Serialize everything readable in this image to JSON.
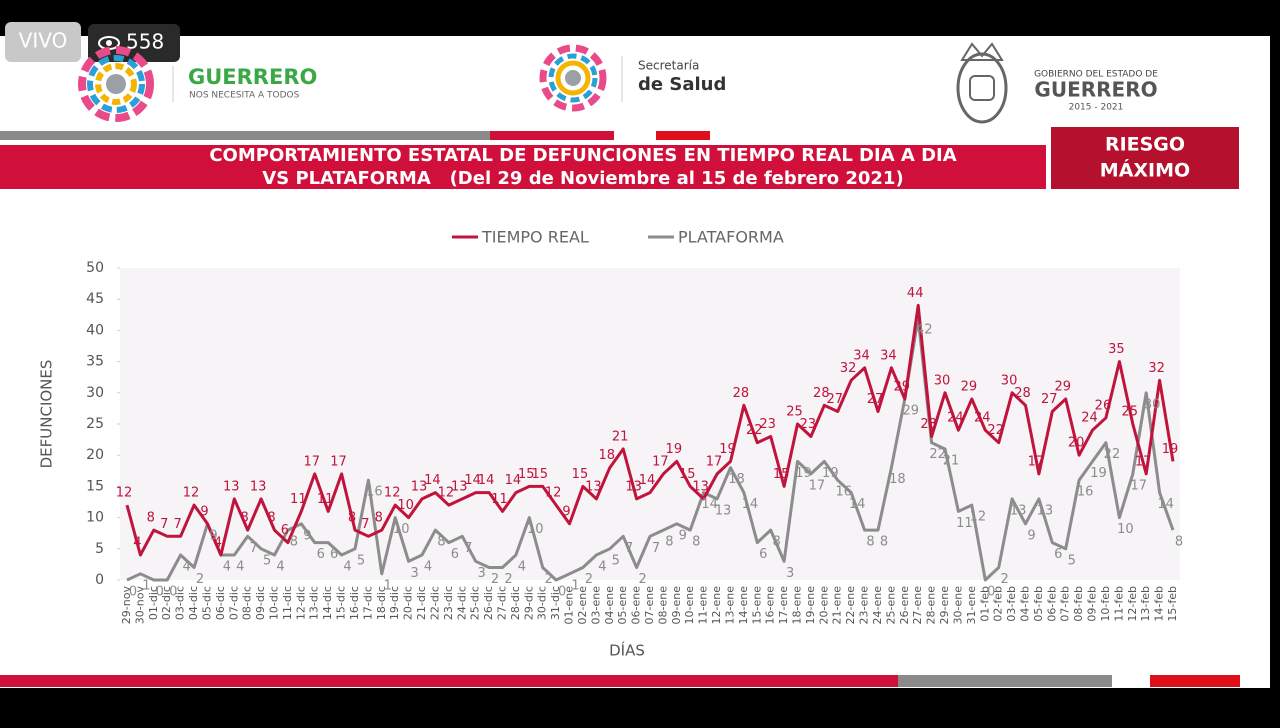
{
  "stream": {
    "live": "VIVO",
    "viewers": "558"
  },
  "header": {
    "brand": "GUERRERO",
    "slogan": "NOS NECESITA A TODOS",
    "secretaria": "Secretaría",
    "salud": "de Salud",
    "gob": "GOBIERNO DEL ESTADO DE",
    "gob_name": "GUERRERO",
    "period": "2015 - 2021",
    "risk": [
      "RIESGO",
      "MÁXIMO"
    ]
  },
  "chart_data": {
    "type": "line",
    "title": "COMPORTAMIENTO ESTATAL DE DEFUNCIONES EN TIEMPO REAL DIA A DIA",
    "subtitle": "VS PLATAFORMA   (Del 29 de Noviembre al 15 de febrero 2021)",
    "y_label": "DEFUNCIONES",
    "x_label": "DÍAS",
    "ylim": [
      0,
      50
    ],
    "yticks": [
      0,
      5,
      10,
      15,
      20,
      25,
      30,
      35,
      40,
      45,
      50
    ],
    "categories": [
      "29-nov",
      "30-nov",
      "01-dic",
      "02-dic",
      "03-dic",
      "04-dic",
      "05-dic",
      "06-dic",
      "07-dic",
      "08-dic",
      "09-dic",
      "10-dic",
      "11-dic",
      "12-dic",
      "13-dic",
      "14-dic",
      "15-dic",
      "16-dic",
      "17-dic",
      "18-dic",
      "19-dic",
      "20-dic",
      "21-dic",
      "22-dic",
      "23-dic",
      "24-dic",
      "25-dic",
      "26-dic",
      "27-dic",
      "28-dic",
      "29-dic",
      "30-dic",
      "31-dic",
      "01-ene",
      "02-ene",
      "03-ene",
      "04-ene",
      "05-ene",
      "06-ene",
      "07-ene",
      "08-ene",
      "09-ene",
      "10-ene",
      "11-ene",
      "12-ene",
      "13-ene",
      "14-ene",
      "15-ene",
      "16-ene",
      "17-ene",
      "18-ene",
      "19-ene",
      "20-ene",
      "21-ene",
      "22-ene",
      "23-ene",
      "24-ene",
      "25-ene",
      "26-ene",
      "27-ene",
      "28-ene",
      "29-ene",
      "30-ene",
      "31-ene",
      "01-feb",
      "02-feb",
      "03-feb",
      "04-feb",
      "05-feb",
      "06-feb",
      "07-feb",
      "08-feb",
      "09-feb",
      "10-feb",
      "11-feb",
      "12-feb",
      "13-feb",
      "14-feb",
      "15-feb"
    ],
    "legend": "top",
    "series": [
      {
        "name": "TIEMPO REAL",
        "color": "#c0143c",
        "values": [
          12,
          4,
          8,
          7,
          7,
          12,
          9,
          4,
          13,
          8,
          13,
          8,
          6,
          11,
          17,
          11,
          17,
          8,
          7,
          8,
          12,
          10,
          13,
          14,
          12,
          13,
          14,
          14,
          11,
          14,
          15,
          15,
          12,
          9,
          15,
          13,
          18,
          21,
          13,
          14,
          17,
          19,
          15,
          13,
          17,
          19,
          28,
          22,
          23,
          15,
          25,
          23,
          28,
          27,
          32,
          34,
          27,
          34,
          29,
          44,
          23,
          30,
          24,
          29,
          24,
          22,
          30,
          28,
          17,
          27,
          29,
          20,
          24,
          26,
          35,
          25,
          17,
          32,
          19
        ]
      },
      {
        "name": "PLATAFORMA",
        "color": "#8c8c8c",
        "values": [
          0,
          1,
          0,
          0,
          4,
          2,
          9,
          4,
          4,
          7,
          5,
          4,
          8,
          9,
          6,
          6,
          4,
          5,
          16,
          1,
          10,
          3,
          4,
          8,
          6,
          7,
          3,
          2,
          2,
          4,
          10,
          2,
          0,
          1,
          2,
          4,
          5,
          7,
          2,
          7,
          8,
          9,
          8,
          14,
          13,
          18,
          14,
          6,
          8,
          3,
          19,
          17,
          19,
          16,
          14,
          8,
          8,
          18,
          29,
          42,
          22,
          21,
          11,
          12,
          0,
          2,
          13,
          9,
          13,
          6,
          5,
          16,
          19,
          22,
          10,
          17,
          30,
          14,
          8
        ]
      }
    ]
  }
}
